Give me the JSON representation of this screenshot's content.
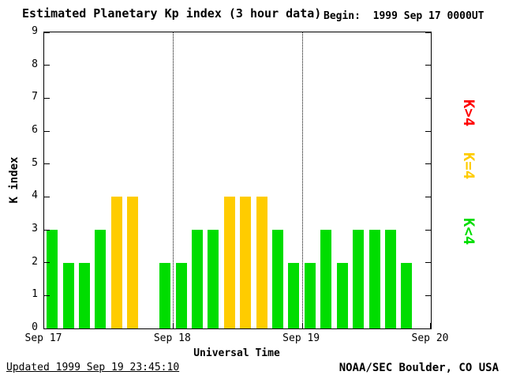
{
  "page": {
    "begin_label": "Begin:  1999 Sep 17 0000UT",
    "updated": "Updated 1999 Sep 19 23:45:10",
    "credit": "NOAA/SEC Boulder, CO USA"
  },
  "chart_data": {
    "type": "bar",
    "title": "Estimated Planetary Kp index (3 hour data)",
    "xlabel": "Universal Time",
    "ylabel": "K index",
    "ylim": [
      0,
      9
    ],
    "yticks": [
      0,
      1,
      2,
      3,
      4,
      5,
      6,
      7,
      8,
      9
    ],
    "xtick_labels": [
      "Sep 17",
      "Sep 18",
      "Sep 19",
      "Sep 20"
    ],
    "begin": "1999 Sep 17 0000UT",
    "bars_per_day": 8,
    "hours_per_bar": 3,
    "days": [
      {
        "date": "1999 Sep 17",
        "values": [
          3,
          2,
          2,
          3,
          4,
          4,
          null,
          2
        ]
      },
      {
        "date": "1999 Sep 18",
        "values": [
          2,
          3,
          3,
          4,
          4,
          4,
          3,
          2
        ]
      },
      {
        "date": "1999 Sep 19",
        "values": [
          2,
          3,
          2,
          3,
          3,
          3,
          2,
          null
        ]
      }
    ],
    "color_rules": {
      "k_lt_4": "#00dd00",
      "k_eq_4": "#ffcc00",
      "k_gt_4": "#ff0000"
    },
    "legend": [
      {
        "label": "K>4",
        "color": "#ff0000"
      },
      {
        "label": "K=4",
        "color": "#ffcc00"
      },
      {
        "label": "K<4",
        "color": "#00dd00"
      }
    ],
    "grid": "dotted vertical lines at day boundaries",
    "legend_position": "right, rotated 90deg"
  }
}
